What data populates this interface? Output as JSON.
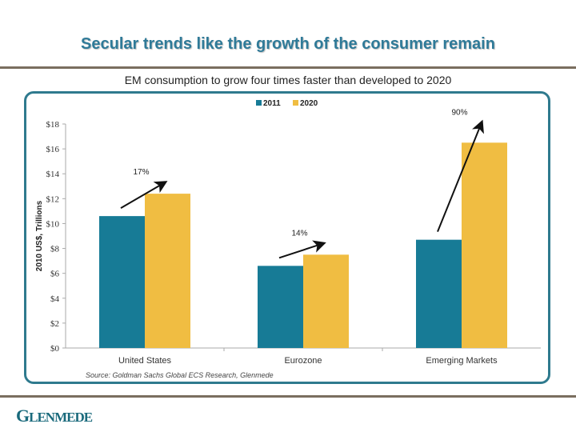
{
  "slide": {
    "title": "Secular trends like the growth of the consumer remain",
    "subtitle": "EM consumption to grow four times faster than developed to 2020",
    "logo_first": "G",
    "logo_rest": "LENMEDE",
    "colors": {
      "title": "#2f7a98",
      "rule": "#7a6e5f",
      "frame": "#2f7a8e",
      "logo": "#1a6a7c"
    }
  },
  "chart_data": {
    "type": "bar",
    "title": "",
    "xlabel": "",
    "ylabel": "2010 US$, Trillions",
    "ylim": [
      0,
      18
    ],
    "yticks": [
      0,
      2,
      4,
      6,
      8,
      10,
      12,
      14,
      16,
      18
    ],
    "ytick_labels": [
      "$0",
      "$2",
      "$4",
      "$6",
      "$8",
      "$10",
      "$12",
      "$14",
      "$16",
      "$18"
    ],
    "categories": [
      "United States",
      "Eurozone",
      "Emerging Markets"
    ],
    "series": [
      {
        "name": "2011",
        "color": "#177b96",
        "values": [
          10.6,
          6.6,
          8.7
        ]
      },
      {
        "name": "2020",
        "color": "#f0bd42",
        "values": [
          12.4,
          7.5,
          16.5
        ]
      }
    ],
    "annotations": [
      {
        "category": "United States",
        "text": "17%"
      },
      {
        "category": "Eurozone",
        "text": "14%"
      },
      {
        "category": "Emerging Markets",
        "text": "90%"
      }
    ],
    "legend": "top-center",
    "grid": false,
    "source": "Source: Goldman Sachs Global ECS Research, Glenmede"
  }
}
